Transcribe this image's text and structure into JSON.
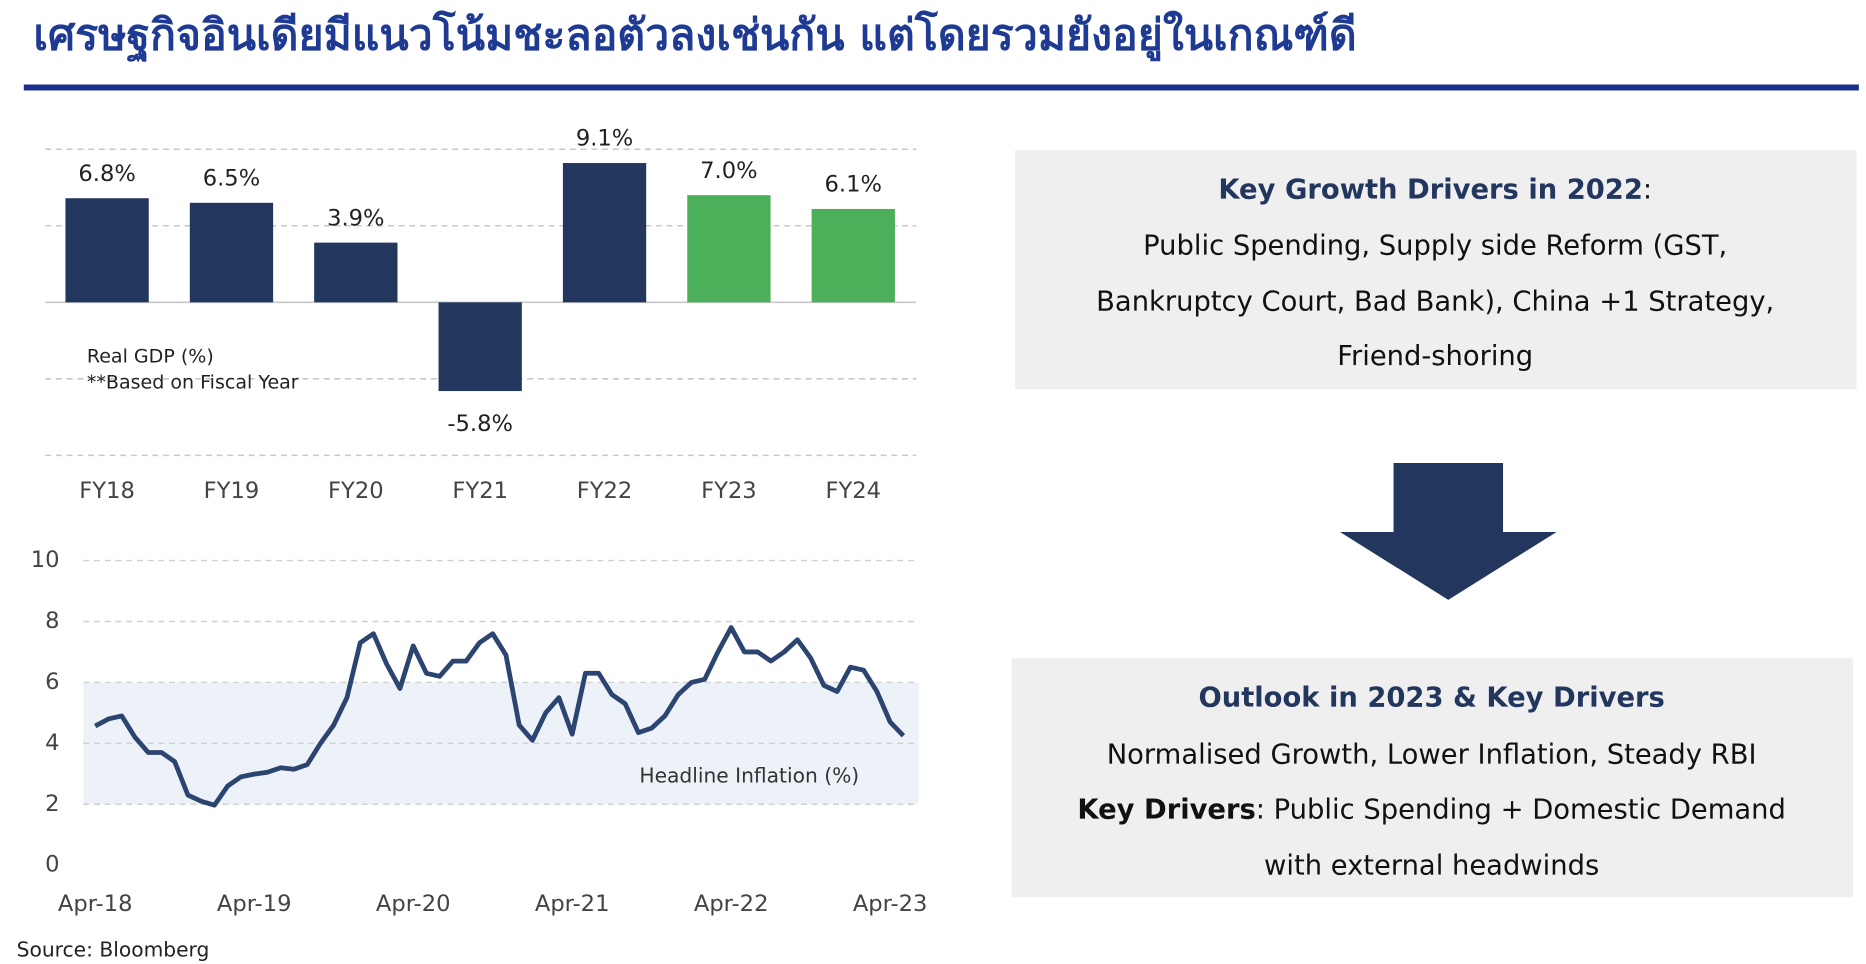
{
  "title": "เศรษฐกิจอินเดียมีแนวโน้มชะลอตัวลงเช่นกัน แต่โดยรวมยังอยู่ในเกณฑ์ดี",
  "source": "Source: Bloomberg",
  "chart_data": [
    {
      "type": "bar",
      "categories": [
        "FY18",
        "FY19",
        "FY20",
        "FY21",
        "FY22",
        "FY23",
        "FY24"
      ],
      "values": [
        6.8,
        6.5,
        3.9,
        -5.8,
        9.1,
        7.0,
        6.1
      ],
      "value_labels": [
        "6.8%",
        "6.5%",
        "3.9%",
        "-5.8%",
        "9.1%",
        "7.0%",
        "6.1%"
      ],
      "colors": [
        "#22365e",
        "#22365e",
        "#22365e",
        "#22365e",
        "#22365e",
        "#4caf5a",
        "#4caf5a"
      ],
      "annotations": [
        "Real GDP (%)",
        "**Based on Fiscal Year"
      ],
      "ylim": [
        -10,
        10
      ],
      "yticks": [
        -10,
        -5,
        0,
        5,
        10
      ],
      "tick_labels": false,
      "grid": true
    },
    {
      "type": "line",
      "categories": [
        "Apr-18",
        null,
        null,
        null,
        null,
        null,
        null,
        null,
        null,
        null,
        null,
        null,
        "Apr-19",
        null,
        null,
        null,
        null,
        null,
        null,
        null,
        null,
        null,
        null,
        null,
        "Apr-20",
        null,
        null,
        null,
        null,
        null,
        null,
        null,
        null,
        null,
        null,
        null,
        "Apr-21",
        null,
        null,
        null,
        null,
        null,
        null,
        null,
        null,
        null,
        null,
        null,
        "Apr-22",
        null,
        null,
        null,
        null,
        null,
        null,
        null,
        null,
        null,
        null,
        null,
        "Apr-23",
        null
      ],
      "values": [
        4.57,
        4.8,
        4.9,
        4.2,
        3.7,
        3.7,
        3.4,
        2.3,
        2.1,
        1.97,
        2.6,
        2.9,
        2.99,
        3.05,
        3.2,
        3.15,
        3.3,
        4.0,
        4.6,
        5.5,
        7.3,
        7.6,
        6.6,
        5.8,
        7.2,
        6.3,
        6.2,
        6.7,
        6.7,
        7.3,
        7.6,
        6.9,
        4.6,
        4.1,
        5.0,
        5.5,
        4.3,
        6.3,
        6.3,
        5.6,
        5.3,
        4.35,
        4.5,
        4.9,
        5.6,
        6.0,
        6.1,
        7.0,
        7.8,
        7.0,
        7.0,
        6.7,
        7.0,
        7.4,
        6.8,
        5.9,
        5.7,
        6.5,
        6.4,
        5.7,
        4.7,
        4.25
      ],
      "color": "#2c4470",
      "band": [
        2,
        6
      ],
      "band_color": "#edf2f9",
      "annotation": "Headline Inflation (%)",
      "ylim": [
        0,
        10
      ],
      "yticks": [
        0,
        2,
        4,
        6,
        8,
        10
      ],
      "grid": true
    }
  ],
  "boxes": [
    {
      "lines": [
        [
          {
            "text": "Key Growth Drivers in 2022",
            "bold": true,
            "color": "#22365e"
          },
          {
            "text": ":"
          }
        ],
        [
          {
            "text": "Public Spending, Supply side Reform (GST,"
          }
        ],
        [
          {
            "text": "Bankruptcy Court, Bad Bank), China +1 Strategy,"
          }
        ],
        [
          {
            "text": "Friend-shoring"
          }
        ]
      ]
    },
    {
      "lines": [
        [
          {
            "text": "Outlook in 2023 & Key Drivers",
            "bold": true,
            "color": "#22365e"
          }
        ],
        [
          {
            "text": "Normalised Growth, Lower Inflation, Steady RBI"
          }
        ],
        [
          {
            "text": "Key Drivers",
            "bold": true
          },
          {
            "text": ": Public Spending + Domestic Demand"
          }
        ],
        [
          {
            "text": "with external headwinds"
          }
        ]
      ]
    }
  ]
}
